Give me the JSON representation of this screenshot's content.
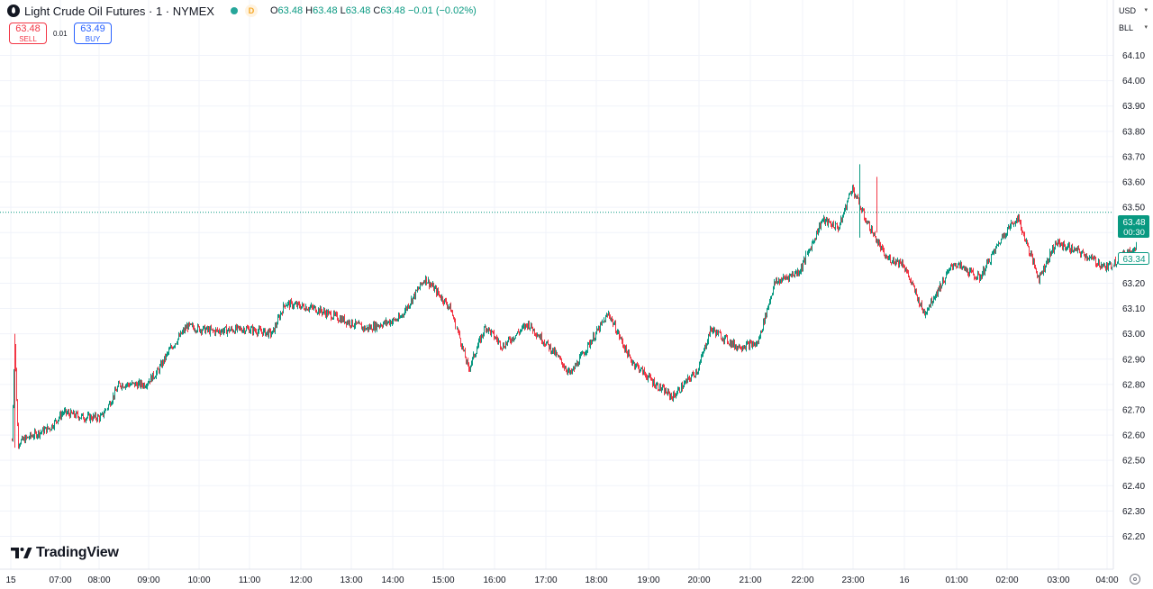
{
  "header": {
    "symbol_title": "Light Crude Oil Futures · 1 · NYMEX",
    "delayed_badge": "D",
    "ohlc": {
      "o_label": "O",
      "o": "63.48",
      "h_label": "H",
      "h": "63.48",
      "l_label": "L",
      "l": "63.48",
      "c_label": "C",
      "c": "63.48",
      "change": "−0.01 (−0.02%)"
    }
  },
  "trade": {
    "sell_price": "63.48",
    "sell_label": "SELL",
    "spread": "0.01",
    "buy_price": "63.49",
    "buy_label": "BUY"
  },
  "axis_controls": {
    "currency": "USD",
    "unit": "BLL"
  },
  "watermark": "TradingView",
  "price_tags": {
    "last_price": "63.48",
    "countdown": "00:30",
    "secondary_price": "63.34"
  },
  "colors": {
    "up": "#089981",
    "down": "#f23645",
    "last_price_bg": "#089981",
    "grid": "#f0f3fa"
  },
  "chart_data": {
    "type": "candlestick",
    "y_axis": {
      "min": 62.2,
      "max": 64.1,
      "ticks": [
        "62.20",
        "62.30",
        "62.40",
        "62.50",
        "62.60",
        "62.70",
        "62.80",
        "62.90",
        "63.00",
        "63.10",
        "63.20",
        "63.30",
        "63.40",
        "63.50",
        "63.60",
        "63.70",
        "63.80",
        "63.90",
        "64.00",
        "64.10"
      ]
    },
    "x_axis": {
      "ticks": [
        "15",
        "07:00",
        "08:00",
        "09:00",
        "10:00",
        "11:00",
        "12:00",
        "13:00",
        "14:00",
        "15:00",
        "16:00",
        "17:00",
        "18:00",
        "19:00",
        "20:00",
        "21:00",
        "22:00",
        "23:00",
        "16",
        "01:00",
        "02:00",
        "03:00",
        "04:00"
      ]
    },
    "grid": true,
    "last_price_line": 63.48,
    "trend": [
      {
        "t": "06:05",
        "v": 62.58
      },
      {
        "t": "06:08",
        "v": 62.98
      },
      {
        "t": "06:12",
        "v": 62.57
      },
      {
        "t": "06:30",
        "v": 62.6
      },
      {
        "t": "06:50",
        "v": 62.63
      },
      {
        "t": "07:05",
        "v": 62.69
      },
      {
        "t": "07:30",
        "v": 62.67
      },
      {
        "t": "07:50",
        "v": 62.67
      },
      {
        "t": "08:10",
        "v": 62.8
      },
      {
        "t": "08:40",
        "v": 62.8
      },
      {
        "t": "08:55",
        "v": 62.85
      },
      {
        "t": "09:10",
        "v": 62.94
      },
      {
        "t": "09:30",
        "v": 63.03
      },
      {
        "t": "10:00",
        "v": 63.01
      },
      {
        "t": "10:40",
        "v": 63.02
      },
      {
        "t": "11:10",
        "v": 63.0
      },
      {
        "t": "11:25",
        "v": 63.12
      },
      {
        "t": "12:00",
        "v": 63.1
      },
      {
        "t": "12:30",
        "v": 63.06
      },
      {
        "t": "13:00",
        "v": 63.02
      },
      {
        "t": "13:40",
        "v": 63.06
      },
      {
        "t": "14:10",
        "v": 63.22
      },
      {
        "t": "14:40",
        "v": 63.1
      },
      {
        "t": "15:00",
        "v": 62.86
      },
      {
        "t": "15:20",
        "v": 63.03
      },
      {
        "t": "15:40",
        "v": 62.95
      },
      {
        "t": "16:10",
        "v": 63.04
      },
      {
        "t": "16:40",
        "v": 62.93
      },
      {
        "t": "17:00",
        "v": 62.84
      },
      {
        "t": "17:20",
        "v": 62.95
      },
      {
        "t": "17:45",
        "v": 63.08
      },
      {
        "t": "18:10",
        "v": 62.9
      },
      {
        "t": "18:40",
        "v": 62.8
      },
      {
        "t": "19:00",
        "v": 62.75
      },
      {
        "t": "19:30",
        "v": 62.86
      },
      {
        "t": "19:45",
        "v": 63.02
      },
      {
        "t": "20:15",
        "v": 62.95
      },
      {
        "t": "20:40",
        "v": 62.96
      },
      {
        "t": "21:00",
        "v": 63.2
      },
      {
        "t": "21:30",
        "v": 63.25
      },
      {
        "t": "21:55",
        "v": 63.45
      },
      {
        "t": "22:15",
        "v": 63.42
      },
      {
        "t": "22:30",
        "v": 63.58
      },
      {
        "t": "22:45",
        "v": 63.46
      },
      {
        "t": "23:10",
        "v": 63.3
      },
      {
        "t": "23:30",
        "v": 63.28
      },
      {
        "t": "23:55",
        "v": 63.08
      },
      {
        "t": "00:30",
        "v": 63.28
      },
      {
        "t": "01:00",
        "v": 63.22
      },
      {
        "t": "01:30",
        "v": 63.4
      },
      {
        "t": "01:45",
        "v": 63.46
      },
      {
        "t": "02:10",
        "v": 63.22
      },
      {
        "t": "02:30",
        "v": 63.36
      },
      {
        "t": "03:00",
        "v": 63.32
      },
      {
        "t": "03:30",
        "v": 63.26
      },
      {
        "t": "04:05",
        "v": 63.35
      }
    ]
  }
}
